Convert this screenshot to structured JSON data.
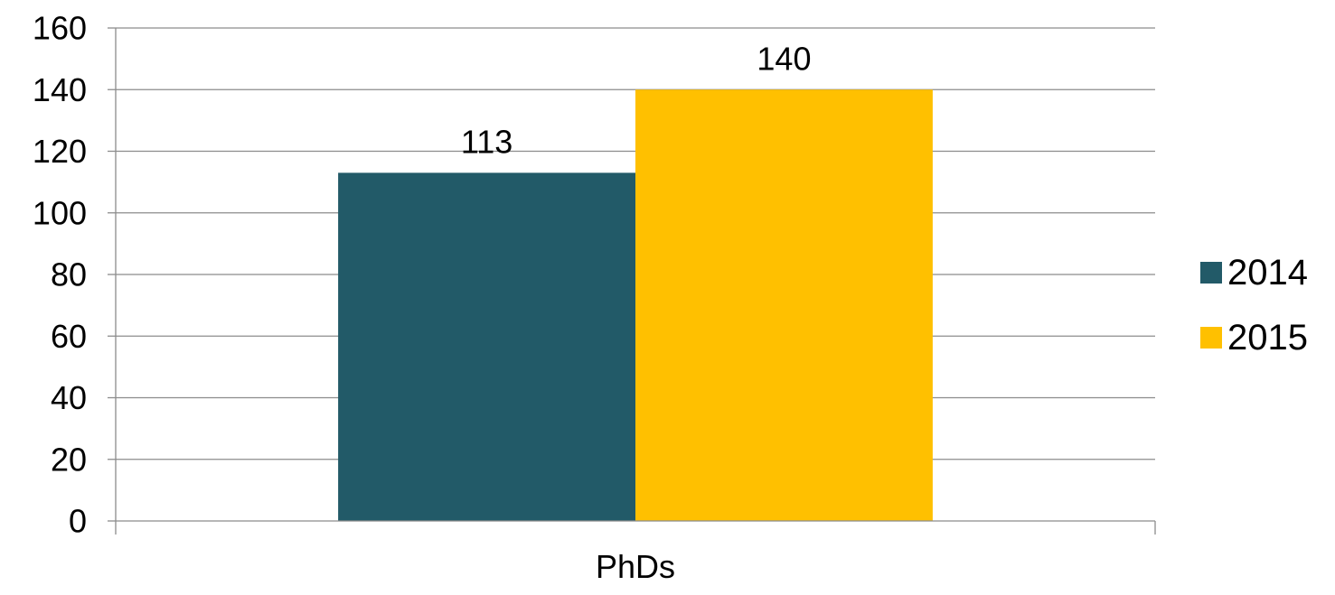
{
  "chart_data": {
    "type": "bar",
    "categories": [
      "PhDs"
    ],
    "series": [
      {
        "name": "2014",
        "values": [
          113
        ],
        "color": "#225A68"
      },
      {
        "name": "2015",
        "values": [
          140
        ],
        "color": "#FFC000"
      }
    ],
    "data_labels": [
      "113",
      "140"
    ],
    "ylim": [
      0,
      160
    ],
    "yticks": [
      0,
      20,
      40,
      60,
      80,
      100,
      120,
      140,
      160
    ],
    "ytick_labels": [
      "0",
      "20",
      "40",
      "60",
      "80",
      "100",
      "120",
      "140",
      "160"
    ],
    "grid": true,
    "legend_position": "right",
    "title": "",
    "xlabel": "",
    "ylabel": ""
  }
}
